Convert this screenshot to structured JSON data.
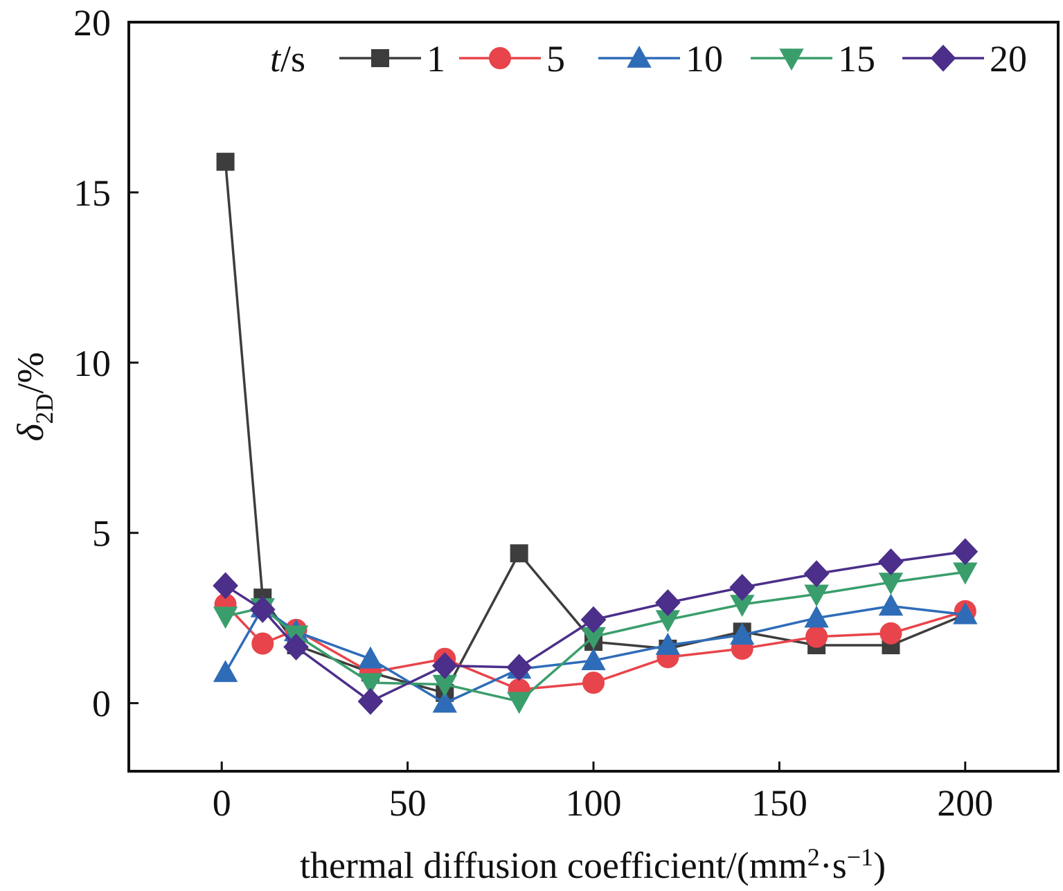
{
  "chart_data": {
    "type": "line",
    "xlabel": "thermal diffusion coefficient/(mm",
    "xlabel_sup1": "2",
    "xlabel_mid": "·s",
    "xlabel_sup2": "−1",
    "xlabel_end": ")",
    "ylabel_symbol": "δ",
    "ylabel_sub": "2D",
    "ylabel_unit": "/%",
    "legend_title_italic": "t",
    "legend_title_unit": "/s",
    "xlim": [
      -25,
      225
    ],
    "ylim": [
      -2,
      20
    ],
    "xticks": [
      0,
      50,
      100,
      150,
      200
    ],
    "yticks": [
      0,
      5,
      10,
      15,
      20
    ],
    "series": [
      {
        "name": "1",
        "color": "#3d3d3d",
        "marker": "square",
        "x": [
          1,
          11,
          20,
          40,
          60,
          80,
          100,
          120,
          140,
          160,
          180,
          200
        ],
        "y": [
          15.9,
          3.1,
          1.7,
          0.9,
          0.3,
          4.4,
          1.8,
          1.6,
          2.1,
          1.7,
          1.7,
          2.6
        ]
      },
      {
        "name": "5",
        "color": "#e8444b",
        "marker": "circle",
        "x": [
          1,
          11,
          20,
          40,
          60,
          80,
          100,
          120,
          140,
          160,
          180,
          200
        ],
        "y": [
          2.9,
          1.75,
          2.15,
          0.9,
          1.3,
          0.4,
          0.6,
          1.35,
          1.6,
          1.95,
          2.05,
          2.7
        ]
      },
      {
        "name": "10",
        "color": "#2e6cb8",
        "marker": "triangle-up",
        "x": [
          1,
          11,
          20,
          40,
          60,
          80,
          100,
          120,
          140,
          160,
          180,
          200
        ],
        "y": [
          0.9,
          2.8,
          2.1,
          1.3,
          0.0,
          1.0,
          1.25,
          1.7,
          2.0,
          2.5,
          2.85,
          2.6
        ]
      },
      {
        "name": "15",
        "color": "#3a9e6c",
        "marker": "triangle-down",
        "x": [
          1,
          11,
          20,
          40,
          60,
          80,
          100,
          120,
          140,
          160,
          180,
          200
        ],
        "y": [
          2.55,
          2.8,
          2.0,
          0.6,
          0.55,
          0.05,
          1.95,
          2.45,
          2.9,
          3.2,
          3.55,
          3.85
        ]
      },
      {
        "name": "20",
        "color": "#4b2f8a",
        "marker": "diamond",
        "x": [
          1,
          11,
          20,
          40,
          60,
          80,
          100,
          120,
          140,
          160,
          180,
          200
        ],
        "y": [
          3.45,
          2.75,
          1.65,
          0.05,
          1.1,
          1.05,
          2.45,
          2.95,
          3.4,
          3.8,
          4.15,
          4.45
        ]
      }
    ]
  }
}
